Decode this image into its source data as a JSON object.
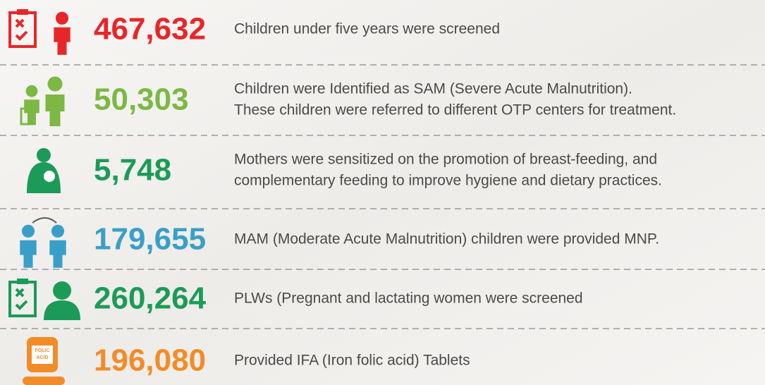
{
  "rows": [
    {
      "number": "467,632",
      "color": "#e8262a",
      "lines": [
        "Children under five years were screened"
      ]
    },
    {
      "number": "50,303",
      "color": "#7cb843",
      "lines": [
        "Children were Identified as SAM (Severe Acute Malnutrition).",
        "These children were referred to different OTP centers for treatment."
      ]
    },
    {
      "number": "5,748",
      "color": "#1b9b57",
      "lines": [
        "Mothers were sensitized on the promotion of breast-feeding, and",
        "complementary feeding to improve hygiene and dietary practices."
      ]
    },
    {
      "number": "179,655",
      "color": "#3a9fc8",
      "lines": [
        "MAM (Moderate Acute Malnutrition) children were provided MNP."
      ]
    },
    {
      "number": "260,264",
      "color": "#1b9b57",
      "lines": [
        "PLWs (Pregnant and lactating women were screened"
      ]
    },
    {
      "number": "196,080",
      "color": "#f28c28",
      "lines": [
        "Provided IFA (Iron folic acid) Tablets"
      ],
      "icon_text": [
        "FOLIC",
        "ACID"
      ]
    }
  ]
}
